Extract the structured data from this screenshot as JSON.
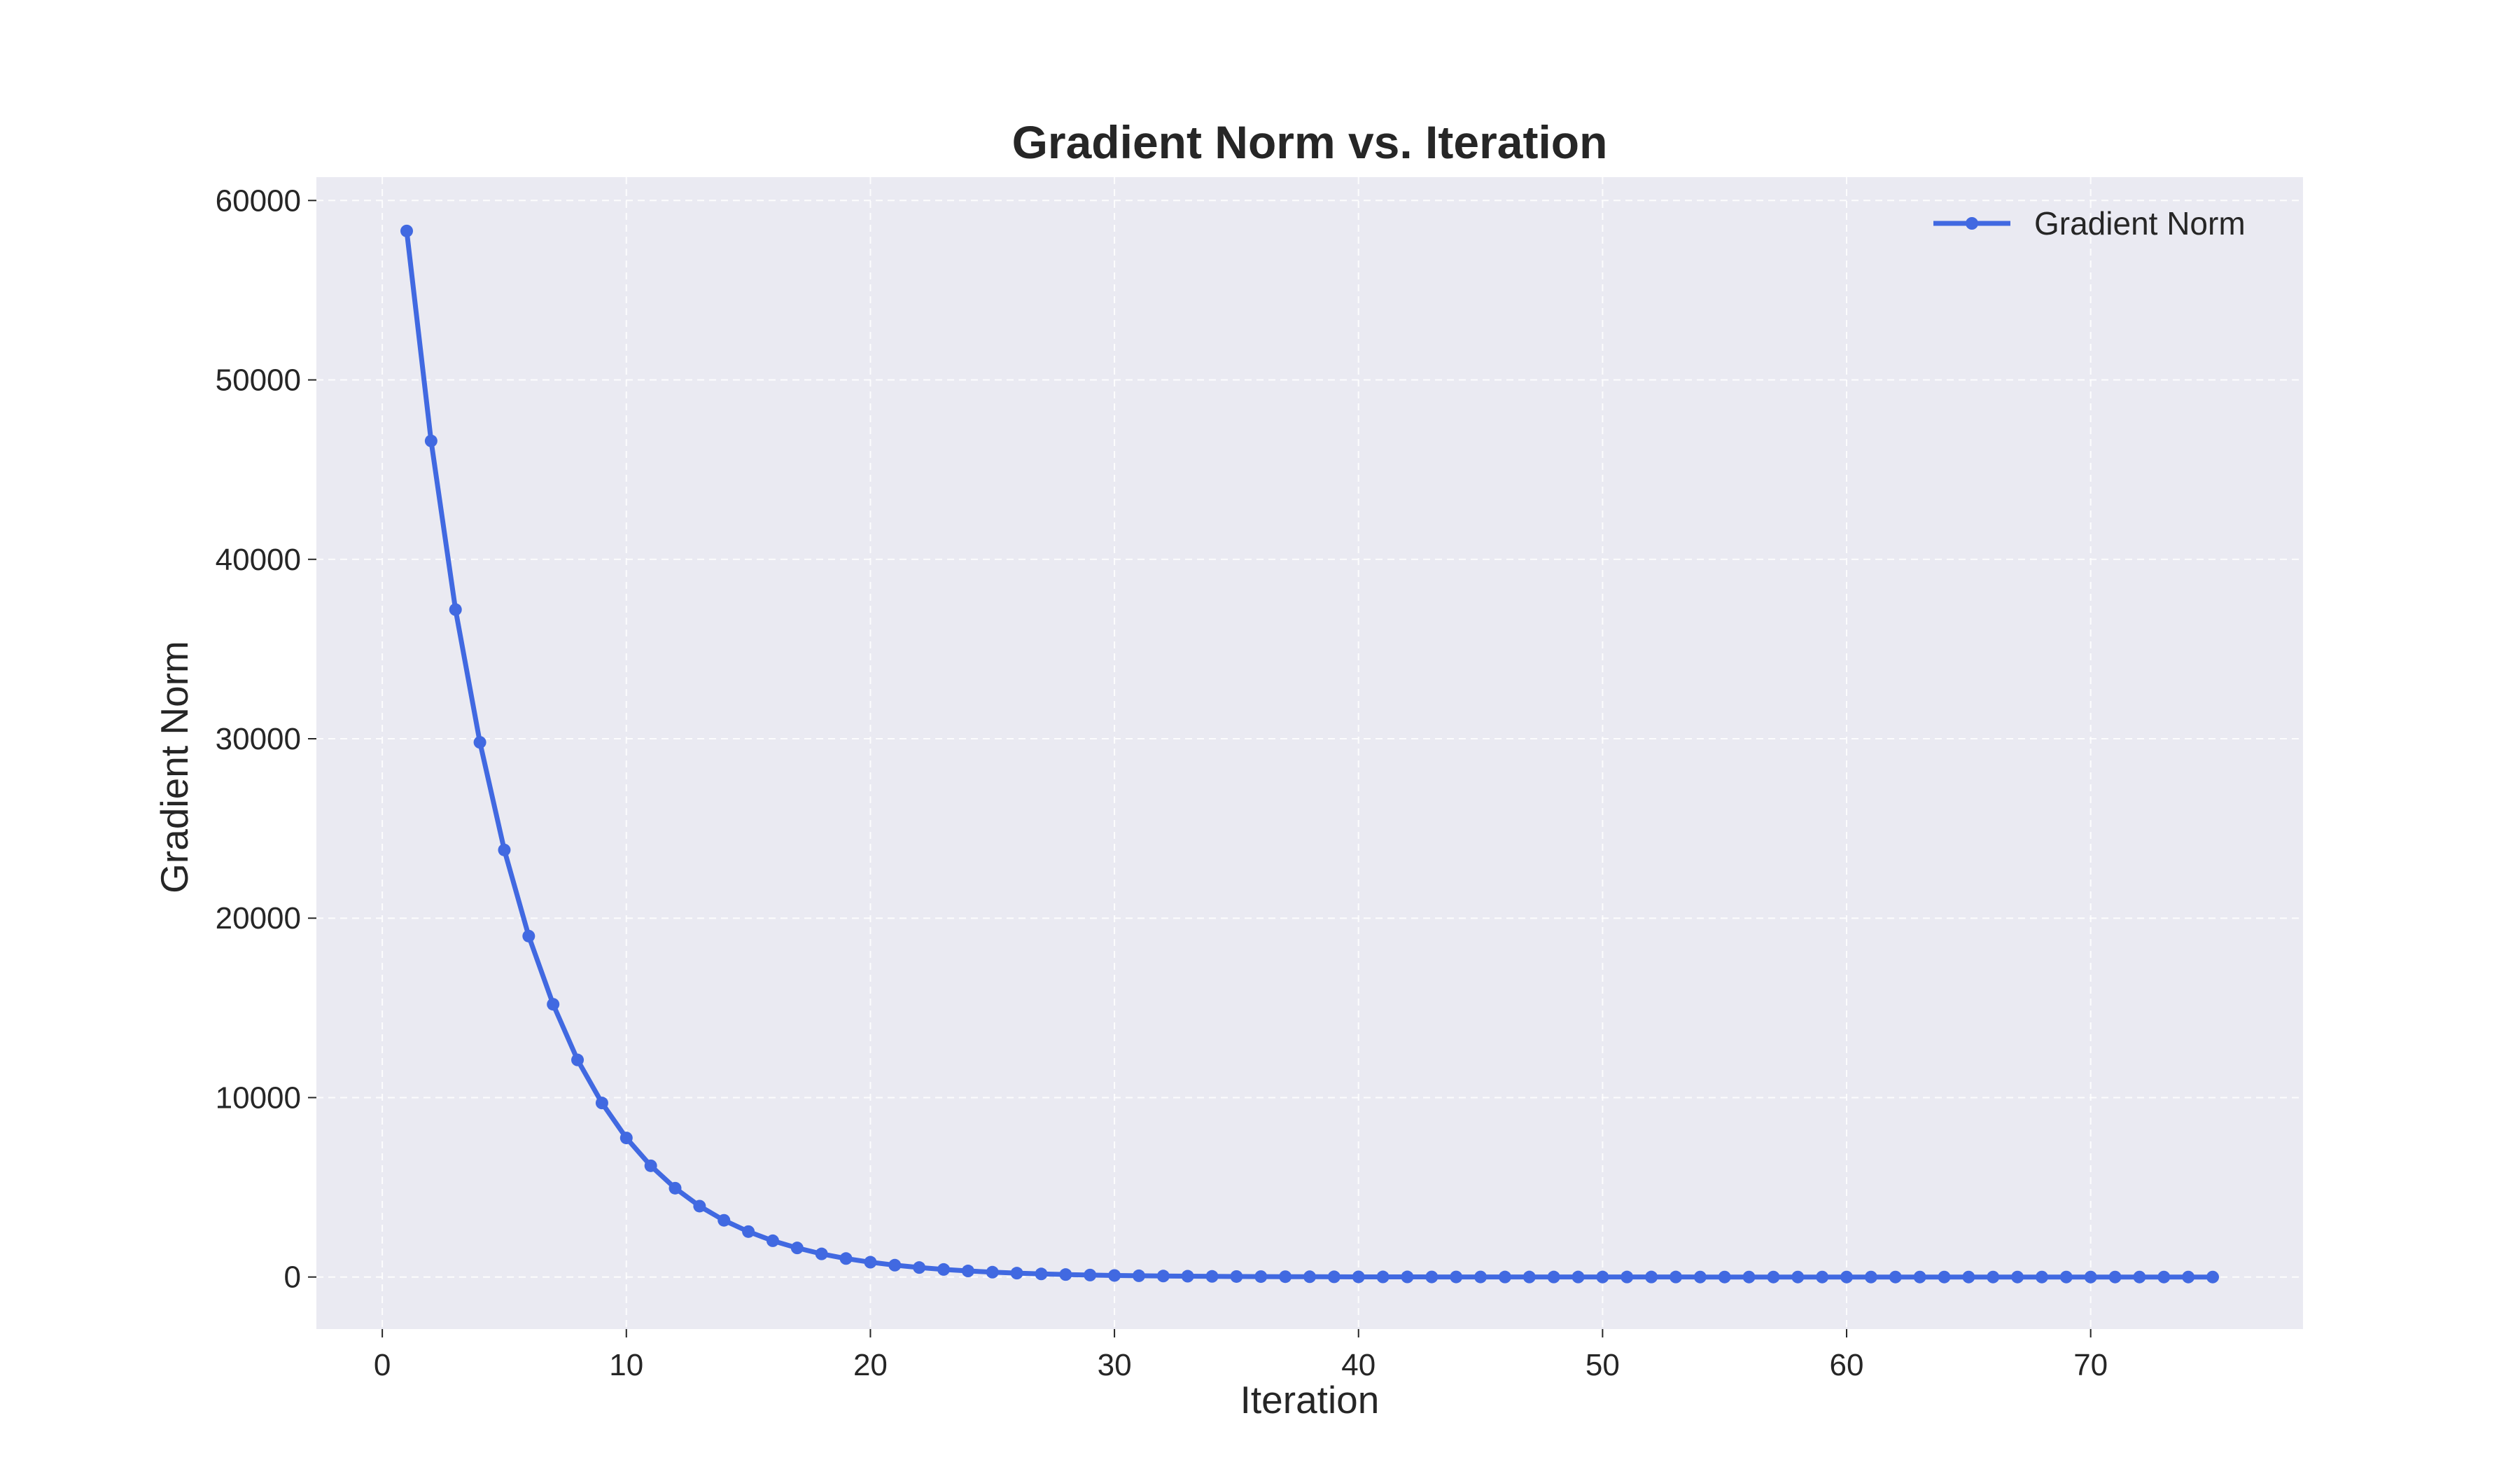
{
  "chart_data": {
    "type": "line",
    "title": "Gradient Norm vs. Iteration",
    "xlabel": "Iteration",
    "ylabel": "Gradient Norm",
    "xlim": [
      -2.7,
      78.7
    ],
    "ylim": [
      -2900,
      61300
    ],
    "x_ticks": [
      0,
      10,
      20,
      30,
      40,
      50,
      60,
      70
    ],
    "y_ticks": [
      0,
      10000,
      20000,
      30000,
      40000,
      50000,
      60000
    ],
    "grid": true,
    "legend": {
      "position": "top-right",
      "entries": [
        "Gradient Norm"
      ]
    },
    "colors": {
      "series": "#4169e1",
      "plot_background": "#eaeaf2",
      "grid": "#ffffff"
    },
    "marker": "circle",
    "series": [
      {
        "name": "Gradient Norm",
        "x": [
          1,
          2,
          3,
          4,
          5,
          6,
          7,
          8,
          9,
          10,
          11,
          12,
          13,
          14,
          15,
          16,
          17,
          18,
          19,
          20,
          21,
          22,
          23,
          24,
          25,
          26,
          27,
          28,
          29,
          30,
          31,
          32,
          33,
          34,
          35,
          36,
          37,
          38,
          39,
          40,
          41,
          42,
          43,
          44,
          45,
          46,
          47,
          48,
          49,
          50,
          51,
          52,
          53,
          54,
          55,
          56,
          57,
          58,
          59,
          60,
          61,
          62,
          63,
          64,
          65,
          66,
          67,
          68,
          69,
          70,
          71,
          72,
          73,
          74,
          75
        ],
        "values": [
          58300,
          46600,
          37200,
          29800,
          23800,
          19000,
          15200,
          12100,
          9700,
          7750,
          6200,
          4950,
          3950,
          3160,
          2530,
          2020,
          1620,
          1290,
          1030,
          826,
          660,
          528,
          422,
          338,
          270,
          216,
          173,
          138,
          110,
          88,
          70,
          56,
          45,
          36,
          29,
          23,
          18,
          15,
          12,
          9,
          7,
          6,
          5,
          4,
          3,
          2,
          2,
          2,
          1,
          1,
          1,
          1,
          1,
          0,
          0,
          0,
          0,
          0,
          0,
          0,
          0,
          0,
          0,
          0,
          0,
          0,
          0,
          0,
          0,
          0,
          0,
          0,
          0,
          0,
          0
        ]
      }
    ]
  }
}
